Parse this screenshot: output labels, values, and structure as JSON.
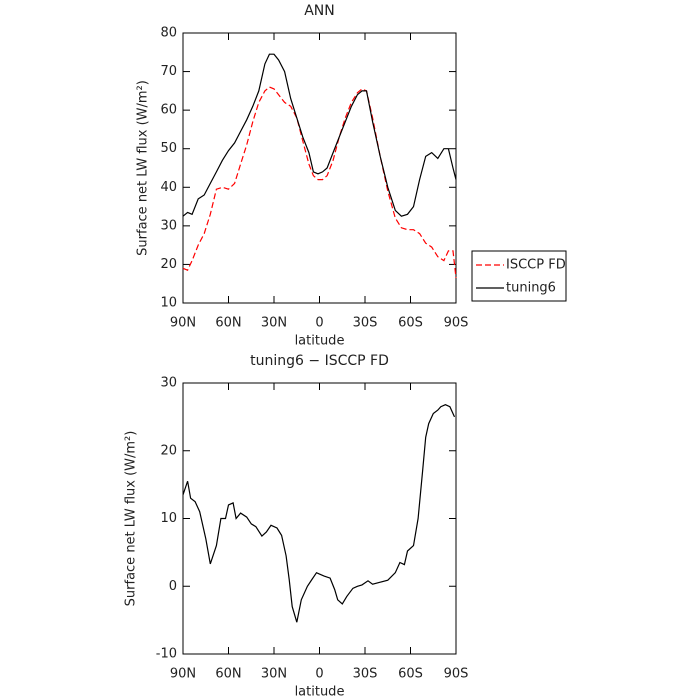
{
  "chart_data": [
    {
      "type": "line",
      "title": "ANN",
      "xlabel": "latitude",
      "ylabel": "Surface net LW flux (W/m²)",
      "x": [
        90,
        87,
        84,
        80,
        76,
        72,
        68,
        64,
        60,
        56,
        52,
        48,
        44,
        40,
        36,
        33,
        30,
        27,
        23,
        19,
        15,
        11,
        7,
        4,
        1,
        -2,
        -5,
        -9,
        -13,
        -17,
        -21,
        -25,
        -28,
        -31,
        -35,
        -40,
        -45,
        -50,
        -54,
        -58,
        -62,
        -66,
        -70,
        -74,
        -78,
        -82,
        -85,
        -88,
        -90
      ],
      "series": [
        {
          "name": "ISCCP FD",
          "color": "#ff0000",
          "dashed": true,
          "values": [
            19,
            18.5,
            21,
            25,
            28,
            33,
            39.5,
            40,
            39.5,
            41,
            46,
            51,
            57,
            62,
            65,
            66,
            65.5,
            64,
            62,
            61,
            58,
            52,
            46,
            43,
            42,
            42,
            43,
            47,
            53,
            58,
            62,
            64.5,
            65.5,
            65,
            58,
            48,
            39,
            32,
            29.5,
            29,
            29,
            28,
            25.5,
            24.5,
            22,
            21,
            23.5,
            23.5,
            16.5
          ]
        },
        {
          "name": "tuning6",
          "color": "#000000",
          "dashed": false,
          "values": [
            32.5,
            33.5,
            33,
            37,
            38,
            41,
            44,
            47,
            49.5,
            51.5,
            54.5,
            57.5,
            61,
            65,
            72,
            74.5,
            74.5,
            73,
            70,
            63,
            58,
            53,
            49,
            44,
            43.5,
            44,
            45,
            49,
            53,
            57,
            61,
            64,
            65,
            65,
            57,
            48,
            40,
            34,
            32.5,
            33,
            35,
            42,
            48,
            49,
            47.5,
            50,
            50,
            45,
            42
          ]
        }
      ],
      "xlim": [
        90,
        -90
      ],
      "xticks": [
        {
          "value": 90,
          "label": "90N"
        },
        {
          "value": 60,
          "label": "60N"
        },
        {
          "value": 30,
          "label": "30N"
        },
        0,
        {
          "value": -30,
          "label": "30S"
        },
        {
          "value": -60,
          "label": "60S"
        },
        {
          "value": -90,
          "label": "90S"
        }
      ],
      "ylim": [
        10,
        80
      ],
      "yticks": [
        10,
        20,
        30,
        40,
        50,
        60,
        70,
        80
      ],
      "grid": false,
      "legend": "right"
    },
    {
      "type": "line",
      "title": "tuning6 − ISCCP FD",
      "xlabel": "latitude",
      "ylabel": "Surface net LW flux (W/m²)",
      "x": [
        90,
        87,
        85,
        82,
        79,
        75,
        72,
        68,
        65,
        62,
        60,
        57,
        55,
        52,
        48,
        45,
        42,
        38,
        35,
        32,
        28,
        25,
        22,
        20,
        18,
        15,
        12,
        8,
        5,
        2,
        0,
        -3,
        -7,
        -10,
        -12,
        -15,
        -18,
        -22,
        -25,
        -28,
        -32,
        -35,
        -40,
        -45,
        -50,
        -53,
        -56,
        -58,
        -62,
        -65,
        -68,
        -70,
        -72,
        -75,
        -78,
        -80,
        -83,
        -86,
        -89
      ],
      "values": [
        13.5,
        15.5,
        13,
        12.5,
        11,
        7,
        3.3,
        6,
        10,
        10,
        12,
        12.3,
        10,
        10.8,
        10.2,
        9.2,
        8.8,
        7.4,
        8,
        9,
        8.6,
        7.5,
        4.5,
        1,
        -3,
        -5.3,
        -2,
        0,
        1,
        2,
        1.8,
        1.5,
        1.2,
        -0.5,
        -2,
        -2.6,
        -1.5,
        -0.3,
        0,
        0.2,
        0.8,
        0.3,
        0.6,
        0.9,
        2,
        3.5,
        3.2,
        5.2,
        6,
        10,
        17,
        22,
        24,
        25.5,
        26,
        26.5,
        26.8,
        26.5,
        25
      ],
      "color": "#000000",
      "xlim": [
        90,
        -90
      ],
      "xticks": [
        {
          "value": 90,
          "label": "90N"
        },
        {
          "value": 60,
          "label": "60N"
        },
        {
          "value": 30,
          "label": "30N"
        },
        0,
        {
          "value": -30,
          "label": "30S"
        },
        {
          "value": -60,
          "label": "60S"
        },
        {
          "value": -90,
          "label": "90S"
        }
      ],
      "ylim": [
        -10,
        30
      ],
      "yticks": [
        -10,
        0,
        10,
        20,
        30
      ],
      "grid": false
    }
  ]
}
